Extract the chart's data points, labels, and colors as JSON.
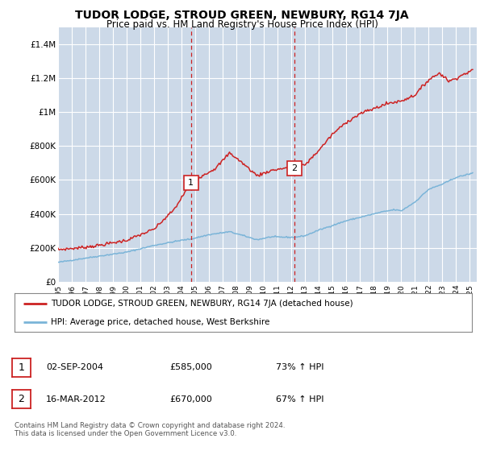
{
  "title": "TUDOR LODGE, STROUD GREEN, NEWBURY, RG14 7JA",
  "subtitle": "Price paid vs. HM Land Registry's House Price Index (HPI)",
  "background_color": "#ffffff",
  "plot_bg_color": "#ccd9e8",
  "grid_color": "#ffffff",
  "ylim": [
    0,
    1500000
  ],
  "yticks": [
    0,
    200000,
    400000,
    600000,
    800000,
    1000000,
    1200000,
    1400000
  ],
  "ytick_labels": [
    "£0",
    "£200K",
    "£400K",
    "£600K",
    "£800K",
    "£1M",
    "£1.2M",
    "£1.4M"
  ],
  "sale1": {
    "date_num": 2004.67,
    "price": 585000,
    "label": "1",
    "date_str": "02-SEP-2004"
  },
  "sale2": {
    "date_num": 2012.21,
    "price": 670000,
    "label": "2",
    "date_str": "16-MAR-2012"
  },
  "hpi_color": "#7ab4d8",
  "red_color": "#cc2222",
  "sale_line_color": "#cc2222",
  "footer_text": "Contains HM Land Registry data © Crown copyright and database right 2024.\nThis data is licensed under the Open Government Licence v3.0.",
  "legend_label_red": "TUDOR LODGE, STROUD GREEN, NEWBURY, RG14 7JA (detached house)",
  "legend_label_blue": "HPI: Average price, detached house, West Berkshire",
  "table_rows": [
    [
      "1",
      "02-SEP-2004",
      "£585,000",
      "73% ↑ HPI"
    ],
    [
      "2",
      "16-MAR-2012",
      "£670,000",
      "67% ↑ HPI"
    ]
  ],
  "xmin": 1995.0,
  "xmax": 2025.5
}
